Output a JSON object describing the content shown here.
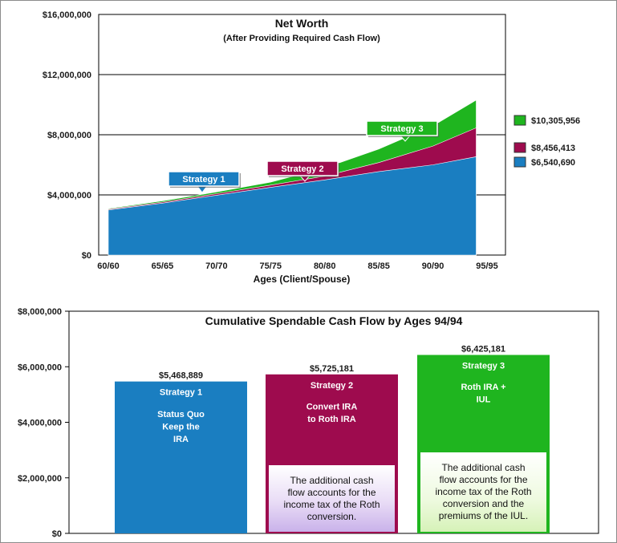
{
  "chart_data": [
    {
      "type": "area",
      "title": "Net Worth",
      "subtitle": "(After Providing Required Cash Flow)",
      "xlabel": "Ages (Client/Spouse)",
      "ylabel": "",
      "x_ticks": [
        "60/60",
        "65/65",
        "70/70",
        "75/75",
        "80/80",
        "85/85",
        "90/90",
        "95/95"
      ],
      "y_ticks": [
        "$0",
        "$4,000,000",
        "$8,000,000",
        "$12,000,000",
        "$16,000,000"
      ],
      "ylim": [
        0,
        16000000
      ],
      "grid": "horizontal",
      "x": [
        60,
        65,
        70,
        75,
        80,
        85,
        90,
        94
      ],
      "series": [
        {
          "name": "Strategy 3",
          "color": "#1fb51f",
          "values": [
            3100000,
            3600000,
            4200000,
            4850000,
            5800000,
            7050000,
            8600000,
            10305956
          ]
        },
        {
          "name": "Strategy 2",
          "color": "#9e0b4e",
          "values": [
            3050000,
            3520000,
            4080000,
            4650000,
            5250000,
            6150000,
            7250000,
            8456413
          ]
        },
        {
          "name": "Strategy 1",
          "color": "#1a7ec1",
          "values": [
            3000000,
            3450000,
            3980000,
            4500000,
            5000000,
            5550000,
            6000000,
            6540690
          ]
        }
      ],
      "legend": [
        "$10,305,956",
        "$8,456,413",
        "$6,540,690"
      ],
      "legend_placement": "right",
      "callouts": [
        {
          "text": "Strategy 1",
          "series": "Strategy 1",
          "color": "#1a7ec1"
        },
        {
          "text": "Strategy 2",
          "series": "Strategy 2",
          "color": "#9e0b4e"
        },
        {
          "text": "Strategy 3",
          "series": "Strategy 3",
          "color": "#1fb51f"
        }
      ]
    },
    {
      "type": "bar",
      "title": "Cumulative Spendable Cash Flow by Ages 94/94",
      "y_ticks": [
        "$0",
        "$2,000,000",
        "$4,000,000",
        "$6,000,000",
        "$8,000,000"
      ],
      "ylim": [
        0,
        8000000
      ],
      "categories": [
        "Strategy 1",
        "Strategy 2",
        "Strategy 3"
      ],
      "values": [
        5468889,
        5725181,
        6425181
      ],
      "value_labels": [
        "$5,468,889",
        "$5,725,181",
        "$6,425,181"
      ],
      "colors": [
        "#1a7ec1",
        "#9e0b4e",
        "#1fb51f"
      ],
      "bar_text": [
        [
          "Strategy 1",
          "Status Quo",
          "Keep the",
          "IRA"
        ],
        [
          "Strategy 2",
          "Convert IRA",
          "to Roth IRA"
        ],
        [
          "Strategy 3",
          "Roth IRA +",
          "IUL"
        ]
      ],
      "notes": [
        null,
        [
          "The additional cash",
          "flow accounts for the",
          "income tax of the Roth",
          "conversion."
        ],
        [
          "The additional cash",
          "flow accounts for the",
          "income tax of the Roth",
          "conversion and the",
          "premiums of the IUL."
        ]
      ]
    }
  ]
}
